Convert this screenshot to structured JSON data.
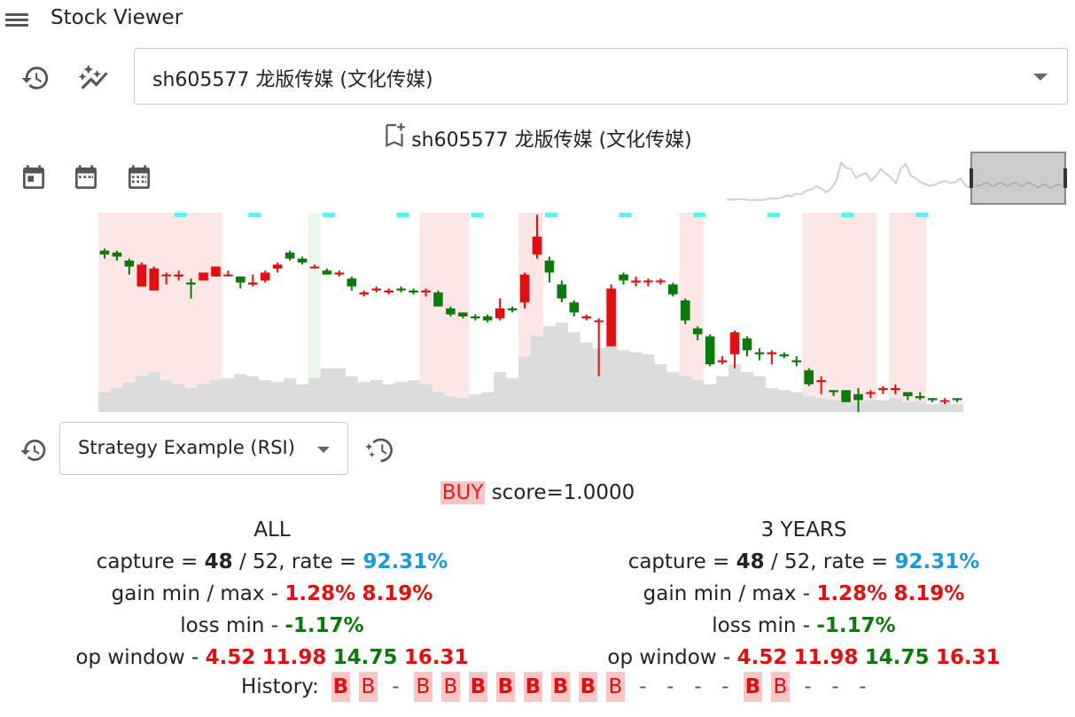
{
  "app": {
    "title": "Stock Viewer"
  },
  "icons": {
    "menu": "menu-icon",
    "history": "history-icon",
    "trend": "auto-graph-icon",
    "bookmark": "bookmark-add-icon",
    "calendar_day": "calendar-today-icon",
    "calendar_week": "calendar-view-week-icon",
    "calendar_month": "calendar-month-icon",
    "strategy_run": "magic-run-icon"
  },
  "stock": {
    "selected": "sh605577 龙版传媒 (文化传媒)",
    "title": "sh605577 龙版传媒 (文化传媒)"
  },
  "colors": {
    "up": "#e01010",
    "down": "#0b7a0b",
    "volume": "#dcdcdc",
    "highlight": "#fde6e6",
    "marker": "#5ff0f0",
    "rate": "#1a9ad6"
  },
  "chart_data": {
    "type": "candlestick",
    "candles": [
      [
        0.81,
        0.79,
        0.82,
        0.77
      ],
      [
        0.8,
        0.78,
        0.81,
        0.76
      ],
      [
        0.76,
        0.73,
        0.77,
        0.69
      ],
      [
        0.63,
        0.74,
        0.75,
        0.63
      ],
      [
        0.61,
        0.72,
        0.73,
        0.61
      ],
      [
        0.69,
        0.69,
        0.7,
        0.64
      ],
      [
        0.68,
        0.69,
        0.71,
        0.66
      ],
      [
        0.65,
        0.64,
        0.67,
        0.57
      ],
      [
        0.66,
        0.7,
        0.7,
        0.66
      ],
      [
        0.68,
        0.73,
        0.73,
        0.68
      ],
      [
        0.69,
        0.69,
        0.71,
        0.68
      ],
      [
        0.68,
        0.65,
        0.68,
        0.62
      ],
      [
        0.64,
        0.65,
        0.69,
        0.63
      ],
      [
        0.66,
        0.7,
        0.71,
        0.65
      ],
      [
        0.72,
        0.74,
        0.75,
        0.7
      ],
      [
        0.8,
        0.77,
        0.81,
        0.76
      ],
      [
        0.77,
        0.75,
        0.78,
        0.74
      ],
      [
        0.73,
        0.73,
        0.74,
        0.72
      ],
      [
        0.71,
        0.69,
        0.72,
        0.69
      ],
      [
        0.69,
        0.7,
        0.71,
        0.68
      ],
      [
        0.67,
        0.63,
        0.68,
        0.61
      ],
      [
        0.59,
        0.6,
        0.61,
        0.58
      ],
      [
        0.61,
        0.62,
        0.63,
        0.6
      ],
      [
        0.6,
        0.61,
        0.62,
        0.59
      ],
      [
        0.62,
        0.61,
        0.63,
        0.6
      ],
      [
        0.61,
        0.6,
        0.62,
        0.59
      ],
      [
        0.6,
        0.61,
        0.62,
        0.58
      ],
      [
        0.6,
        0.53,
        0.61,
        0.53
      ],
      [
        0.52,
        0.49,
        0.53,
        0.48
      ],
      [
        0.5,
        0.48,
        0.5,
        0.47
      ],
      [
        0.48,
        0.47,
        0.49,
        0.46
      ],
      [
        0.48,
        0.46,
        0.49,
        0.45
      ],
      [
        0.47,
        0.52,
        0.57,
        0.46
      ],
      [
        0.52,
        0.51,
        0.53,
        0.5
      ],
      [
        0.55,
        0.69,
        0.7,
        0.52
      ],
      [
        0.79,
        0.88,
        0.99,
        0.77
      ],
      [
        0.76,
        0.7,
        0.78,
        0.65
      ],
      [
        0.64,
        0.57,
        0.66,
        0.55
      ],
      [
        0.55,
        0.5,
        0.56,
        0.48
      ],
      [
        0.47,
        0.48,
        0.49,
        0.46
      ],
      [
        0.46,
        0.46,
        0.47,
        0.18
      ],
      [
        0.33,
        0.62,
        0.64,
        0.33
      ],
      [
        0.69,
        0.66,
        0.7,
        0.64
      ],
      [
        0.65,
        0.66,
        0.68,
        0.63
      ],
      [
        0.66,
        0.66,
        0.67,
        0.63
      ],
      [
        0.66,
        0.66,
        0.67,
        0.64
      ],
      [
        0.64,
        0.59,
        0.65,
        0.58
      ],
      [
        0.56,
        0.46,
        0.57,
        0.44
      ],
      [
        0.42,
        0.39,
        0.43,
        0.36
      ],
      [
        0.38,
        0.24,
        0.39,
        0.23
      ],
      [
        0.25,
        0.26,
        0.28,
        0.24
      ],
      [
        0.29,
        0.4,
        0.41,
        0.22
      ],
      [
        0.37,
        0.31,
        0.38,
        0.28
      ],
      [
        0.3,
        0.29,
        0.32,
        0.26
      ],
      [
        0.29,
        0.3,
        0.31,
        0.24
      ],
      [
        0.29,
        0.28,
        0.3,
        0.27
      ],
      [
        0.26,
        0.25,
        0.28,
        0.23
      ],
      [
        0.21,
        0.14,
        0.22,
        0.13
      ],
      [
        0.16,
        0.16,
        0.18,
        0.09
      ],
      [
        0.11,
        0.1,
        0.11,
        0.08
      ],
      [
        0.11,
        0.05,
        0.11,
        0.05
      ],
      [
        0.09,
        0.06,
        0.12,
        0.0
      ],
      [
        0.1,
        0.1,
        0.11,
        0.07
      ],
      [
        0.11,
        0.12,
        0.13,
        0.09
      ],
      [
        0.11,
        0.12,
        0.14,
        0.09
      ],
      [
        0.1,
        0.08,
        0.1,
        0.06
      ],
      [
        0.08,
        0.07,
        0.1,
        0.06
      ],
      [
        0.07,
        0.06,
        0.07,
        0.05
      ],
      [
        0.06,
        0.06,
        0.07,
        0.04
      ],
      [
        0.07,
        0.06,
        0.07,
        0.05
      ]
    ],
    "volumes": [
      0.1,
      0.12,
      0.15,
      0.18,
      0.2,
      0.16,
      0.14,
      0.12,
      0.14,
      0.16,
      0.17,
      0.19,
      0.18,
      0.16,
      0.15,
      0.17,
      0.14,
      0.17,
      0.22,
      0.22,
      0.18,
      0.15,
      0.16,
      0.14,
      0.15,
      0.16,
      0.14,
      0.1,
      0.08,
      0.07,
      0.09,
      0.1,
      0.2,
      0.17,
      0.28,
      0.38,
      0.43,
      0.45,
      0.4,
      0.35,
      0.32,
      0.33,
      0.31,
      0.3,
      0.29,
      0.24,
      0.2,
      0.18,
      0.16,
      0.14,
      0.18,
      0.24,
      0.2,
      0.18,
      0.12,
      0.11,
      0.1,
      0.08,
      0.07,
      0.06,
      0.05,
      0.05,
      0.06,
      0.06,
      0.07,
      0.05,
      0.05,
      0.04,
      0.05,
      0.04
    ],
    "highlight_ranges": [
      [
        0,
        3
      ],
      [
        3,
        10
      ],
      [
        26,
        30
      ],
      [
        34,
        36
      ],
      [
        47,
        49
      ],
      [
        57,
        63
      ],
      [
        64,
        67
      ]
    ],
    "green_ranges": [
      [
        17,
        18
      ]
    ],
    "markers": [
      6,
      12,
      18,
      24,
      30,
      36,
      42,
      48,
      54,
      60,
      66
    ],
    "overview": [
      0.08,
      0.08,
      0.09,
      0.09,
      0.08,
      0.07,
      0.08,
      0.07,
      0.09,
      0.11,
      0.1,
      0.12,
      0.16,
      0.15,
      0.2,
      0.18,
      0.26,
      0.28,
      0.34,
      0.3,
      0.22,
      0.3,
      0.44,
      0.8,
      0.7,
      0.68,
      0.5,
      0.56,
      0.6,
      0.45,
      0.55,
      0.68,
      0.58,
      0.52,
      0.4,
      0.68,
      0.78,
      0.55,
      0.5,
      0.42,
      0.38,
      0.35,
      0.38,
      0.42,
      0.45,
      0.4,
      0.42,
      0.5,
      0.36,
      0.3
    ]
  },
  "strategy": {
    "selected": "Strategy Example (RSI)",
    "signal": "BUY",
    "score_text": "score=1.0000"
  },
  "stats": {
    "all": {
      "title": "ALL",
      "capture_label": "capture = ",
      "capture_hit": "48",
      "capture_total": " / 52, rate = ",
      "capture_rate": "92.31%",
      "gain_label": "gain min / max - ",
      "gain_min": "1.28%",
      "gain_max": "8.19%",
      "loss_label": "loss min - ",
      "loss_min": "-1.17%",
      "op_label": "op window - ",
      "op_1": "4.52",
      "op_2": "11.98",
      "op_3": "14.75",
      "op_4": "16.31"
    },
    "three_years": {
      "title": "3 YEARS",
      "capture_label": "capture = ",
      "capture_hit": "48",
      "capture_total": " / 52, rate = ",
      "capture_rate": "92.31%",
      "gain_label": "gain min / max - ",
      "gain_min": "1.28%",
      "gain_max": "8.19%",
      "loss_label": "loss min - ",
      "loss_min": "-1.17%",
      "op_label": "op window - ",
      "op_1": "4.52",
      "op_2": "11.98",
      "op_3": "14.75",
      "op_4": "16.31"
    }
  },
  "history": {
    "label": "History:",
    "items": [
      {
        "text": "B",
        "kind": "B"
      },
      {
        "text": "B",
        "kind": "b"
      },
      {
        "text": "-",
        "kind": "dash"
      },
      {
        "text": "B",
        "kind": "b"
      },
      {
        "text": "B",
        "kind": "b"
      },
      {
        "text": "B",
        "kind": "B"
      },
      {
        "text": "B",
        "kind": "B"
      },
      {
        "text": "B",
        "kind": "B"
      },
      {
        "text": "B",
        "kind": "B"
      },
      {
        "text": "B",
        "kind": "B"
      },
      {
        "text": "B",
        "kind": "b"
      },
      {
        "text": "-",
        "kind": "dash"
      },
      {
        "text": "-",
        "kind": "dash"
      },
      {
        "text": "-",
        "kind": "dash"
      },
      {
        "text": "-",
        "kind": "dash"
      },
      {
        "text": "B",
        "kind": "B"
      },
      {
        "text": "B",
        "kind": "b"
      },
      {
        "text": "-",
        "kind": "dash"
      },
      {
        "text": "-",
        "kind": "dash"
      },
      {
        "text": "-",
        "kind": "dash"
      }
    ]
  }
}
